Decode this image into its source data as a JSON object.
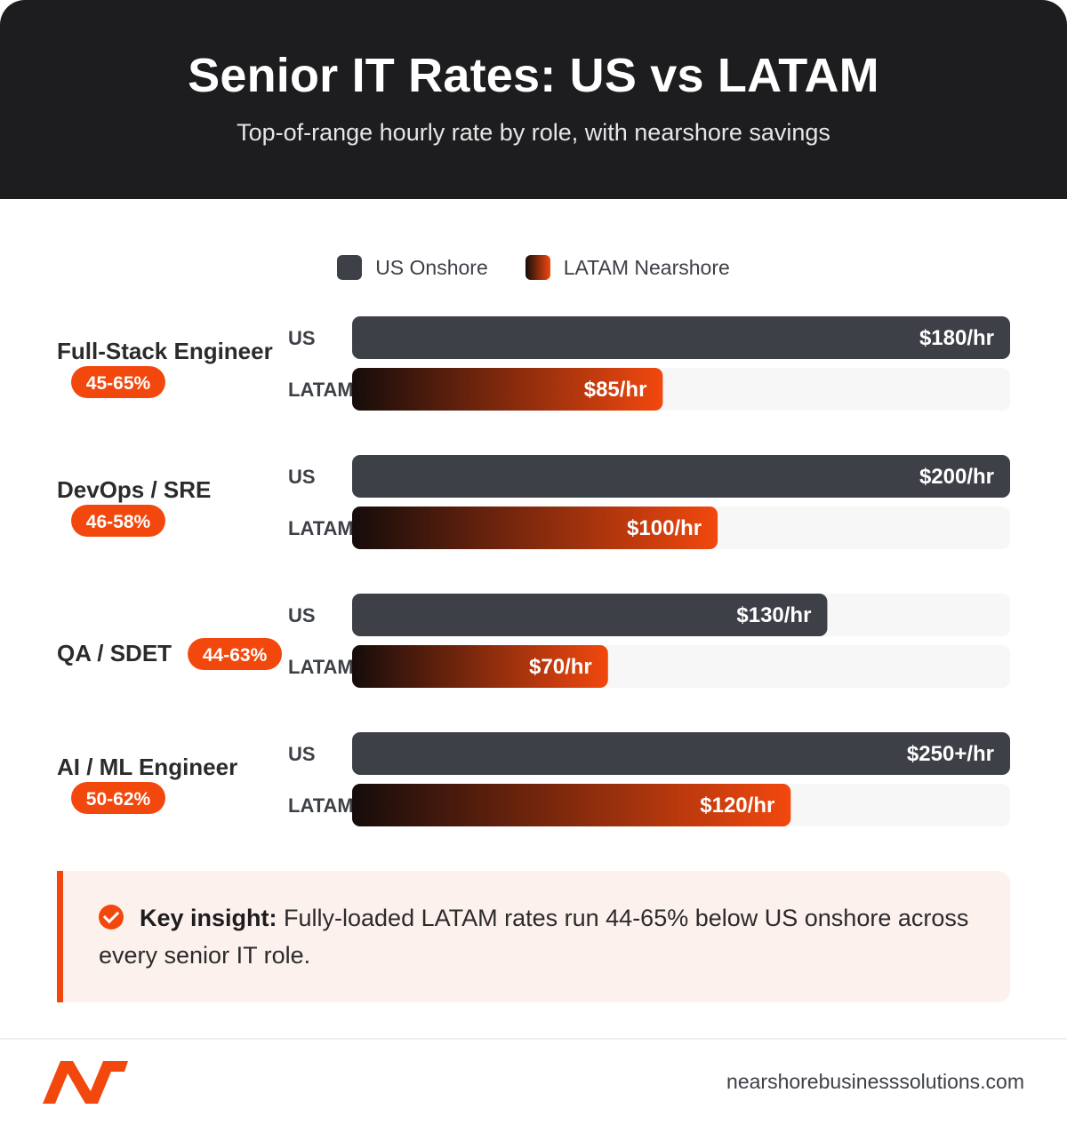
{
  "header": {
    "title": "Senior IT Rates: US vs LATAM",
    "subtitle": "Top-of-range hourly rate by role, with nearshore savings"
  },
  "legend": {
    "us_label": "US Onshore",
    "latam_label": "LATAM Nearshore"
  },
  "colors": {
    "header_bg": "#1d1c1f",
    "us_bar": "#3d4047",
    "latam_gradient_start": "#150c0b",
    "latam_gradient_end": "#f2480e",
    "accent": "#f2480e",
    "track": "#f7f7f7"
  },
  "chart_data": {
    "type": "bar",
    "orientation": "horizontal",
    "value_unit": "USD/hr",
    "scale_max": 180,
    "categories": [
      "Full-Stack Engineer",
      "DevOps / SRE",
      "QA / SDET",
      "AI / ML Engineer"
    ],
    "savings": [
      "45-65%",
      "46-58%",
      "44-63%",
      "50-62%"
    ],
    "row_labels": [
      "US",
      "LATAM"
    ],
    "series": [
      {
        "name": "US Onshore",
        "values": [
          180,
          200,
          130,
          250
        ],
        "labels": [
          "$180/hr",
          "$200/hr",
          "$130/hr",
          "$250+/hr"
        ]
      },
      {
        "name": "LATAM Nearshore",
        "values": [
          85,
          100,
          70,
          120
        ],
        "labels": [
          "$85/hr",
          "$100/hr",
          "$70/hr",
          "$120/hr"
        ]
      }
    ],
    "grid": false,
    "legend_position": "top-center"
  },
  "insight": {
    "label": "Key insight:",
    "text": " Fully-loaded LATAM rates run 44-65% below US onshore across every senior IT role."
  },
  "footer": {
    "logo_icon": "nearshore-logo-icon",
    "url": "nearshorebusinesssolutions.com"
  }
}
